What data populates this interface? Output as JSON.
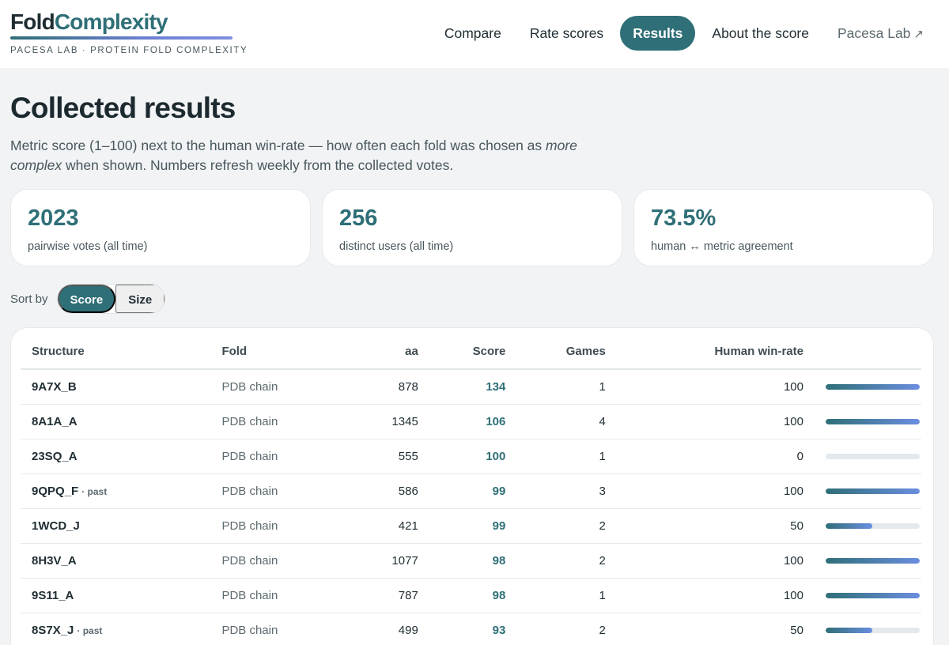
{
  "brand": {
    "name_part1": "Fold",
    "name_part2": "Complexity",
    "tagline": "PACESA LAB · PROTEIN FOLD COMPLEXITY"
  },
  "nav": {
    "items": [
      {
        "label": "Compare",
        "active": false
      },
      {
        "label": "Rate scores",
        "active": false
      },
      {
        "label": "Results",
        "active": true
      },
      {
        "label": "About the score",
        "active": false
      }
    ],
    "external": {
      "label": "Pacesa Lab",
      "arrow": "↗"
    }
  },
  "page": {
    "title": "Collected results",
    "subtitle_before": "Metric score (1–100) next to the human win-rate — how often each fold was chosen as ",
    "subtitle_emphasis": "more complex",
    "subtitle_after": " when shown. Numbers refresh weekly from the collected votes."
  },
  "stats": [
    {
      "value": "2023",
      "label": "pairwise votes (all time)"
    },
    {
      "value": "256",
      "label": "distinct users (all time)"
    },
    {
      "value": "73.5%",
      "label": "human ↔ metric agreement"
    }
  ],
  "sort": {
    "label": "Sort by",
    "options": [
      {
        "label": "Score",
        "active": true
      },
      {
        "label": "Size",
        "active": false
      }
    ]
  },
  "table": {
    "columns": [
      "Structure",
      "Fold",
      "aa",
      "Score",
      "Games",
      "Human win-rate"
    ],
    "rows": [
      {
        "structure": "9A7X_B",
        "past": "",
        "fold": "PDB chain",
        "aa": "878",
        "score": "134",
        "games": "1",
        "winrate": "100",
        "winrate_fraction": 1.0
      },
      {
        "structure": "8A1A_A",
        "past": "",
        "fold": "PDB chain",
        "aa": "1345",
        "score": "106",
        "games": "4",
        "winrate": "100",
        "winrate_fraction": 1.0
      },
      {
        "structure": "23SQ_A",
        "past": "",
        "fold": "PDB chain",
        "aa": "555",
        "score": "100",
        "games": "1",
        "winrate": "0",
        "winrate_fraction": 0.0
      },
      {
        "structure": "9QPQ_F",
        "past": "· past",
        "fold": "PDB chain",
        "aa": "586",
        "score": "99",
        "games": "3",
        "winrate": "100",
        "winrate_fraction": 1.0
      },
      {
        "structure": "1WCD_J",
        "past": "",
        "fold": "PDB chain",
        "aa": "421",
        "score": "99",
        "games": "2",
        "winrate": "50",
        "winrate_fraction": 0.5
      },
      {
        "structure": "8H3V_A",
        "past": "",
        "fold": "PDB chain",
        "aa": "1077",
        "score": "98",
        "games": "2",
        "winrate": "100",
        "winrate_fraction": 1.0
      },
      {
        "structure": "9S11_A",
        "past": "",
        "fold": "PDB chain",
        "aa": "787",
        "score": "98",
        "games": "1",
        "winrate": "100",
        "winrate_fraction": 1.0
      },
      {
        "structure": "8S7X_J",
        "past": "· past",
        "fold": "PDB chain",
        "aa": "499",
        "score": "93",
        "games": "2",
        "winrate": "50",
        "winrate_fraction": 0.5
      }
    ]
  },
  "colors": {
    "accent": "#2f6f77",
    "accent_secondary": "#6b8ee0"
  }
}
